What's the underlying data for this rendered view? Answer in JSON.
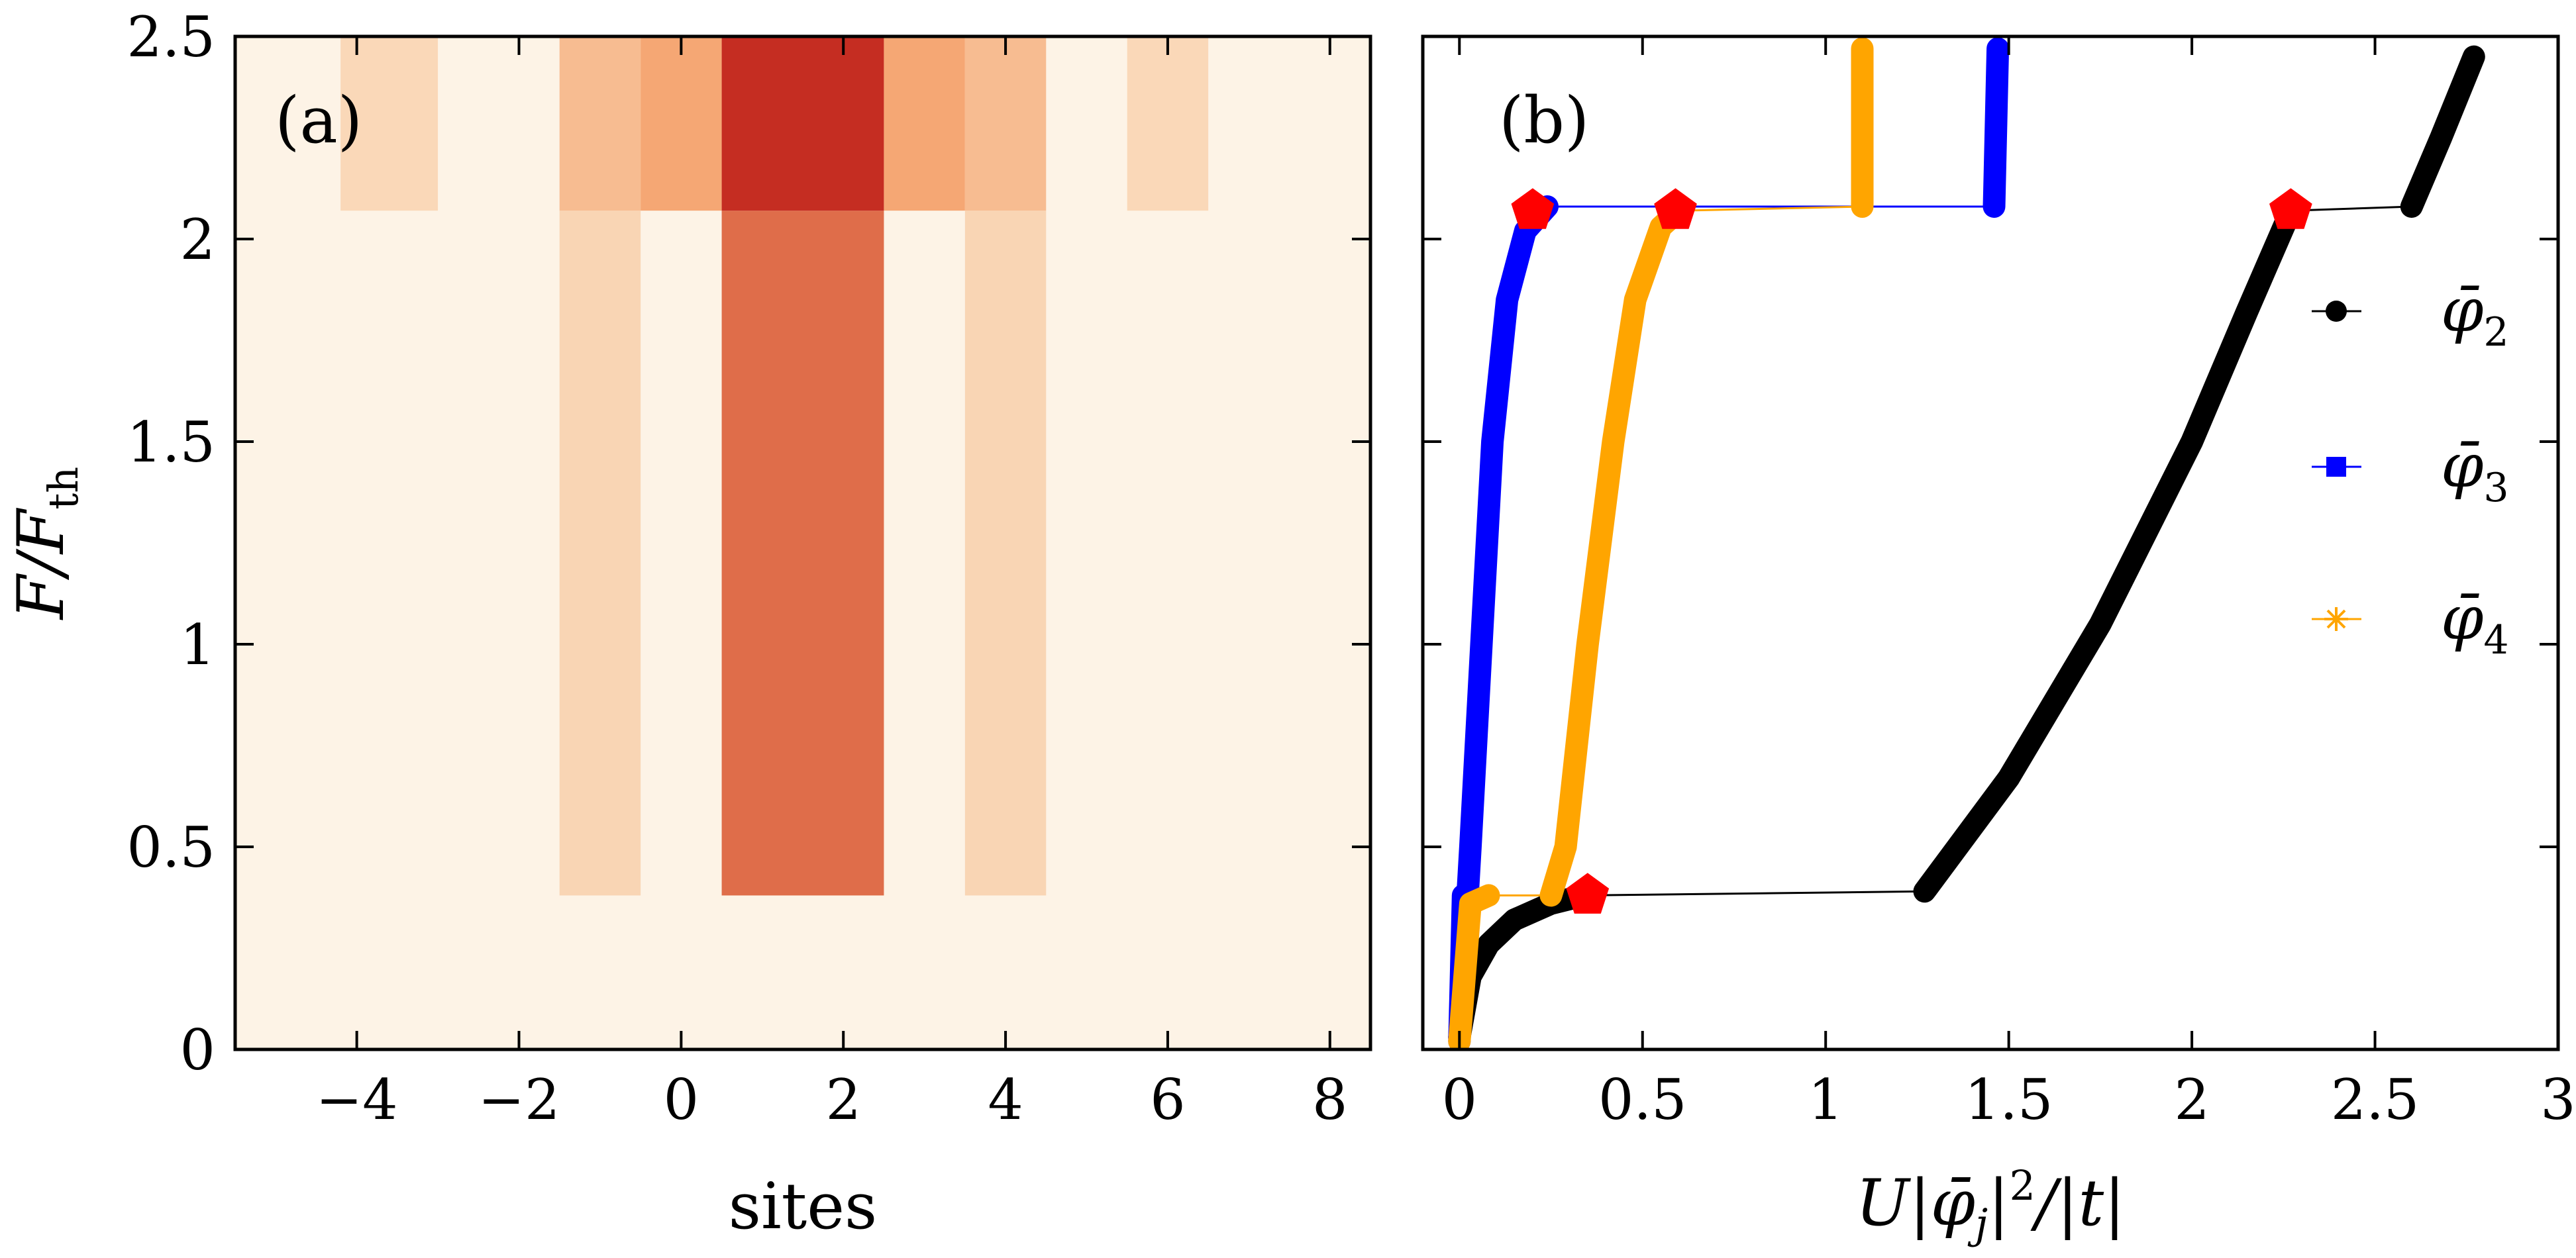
{
  "chart_data": [
    {
      "type": "heatmap",
      "panel_label": "(a)",
      "xlabel": "sites",
      "ylabel": "F/F_th",
      "xlim": [
        -5.5,
        8.5
      ],
      "ylim": [
        0,
        2.5
      ],
      "xticks": [
        "−4",
        "−2",
        "0",
        "2",
        "4",
        "6",
        "8"
      ],
      "xtick_values": [
        -4,
        -2,
        0,
        2,
        4,
        6,
        8
      ],
      "yticks": [
        "0",
        "0.5",
        "1",
        "1.5",
        "2",
        "2.5"
      ],
      "ytick_values": [
        0,
        0.5,
        1,
        1.5,
        2,
        2.5
      ],
      "colors": {
        "background": "#fdf3e6",
        "low": "#fbe6cc",
        "mid": "#f4a06a",
        "high": "#c0201a"
      },
      "bands": [
        {
          "x0": -4.2,
          "x1": -3.0,
          "segments": [
            {
              "y0": 2.07,
              "y1": 2.5,
              "level": 0.1
            }
          ]
        },
        {
          "x0": -1.5,
          "x1": -0.5,
          "segments": [
            {
              "y0": 0.38,
              "y1": 2.07,
              "level": 0.12
            },
            {
              "y0": 2.07,
              "y1": 2.5,
              "level": 0.3
            }
          ]
        },
        {
          "x0": -0.5,
          "x1": 0.5,
          "segments": [
            {
              "y0": 2.07,
              "y1": 2.5,
              "level": 0.45
            }
          ]
        },
        {
          "x0": 0.5,
          "x1": 2.5,
          "segments": [
            {
              "y0": 0.38,
              "y1": 2.07,
              "level": 0.7
            },
            {
              "y0": 2.07,
              "y1": 2.5,
              "level": 0.95
            }
          ]
        },
        {
          "x0": 2.5,
          "x1": 3.5,
          "segments": [
            {
              "y0": 2.07,
              "y1": 2.5,
              "level": 0.45
            }
          ]
        },
        {
          "x0": 3.5,
          "x1": 4.5,
          "segments": [
            {
              "y0": 0.38,
              "y1": 2.07,
              "level": 0.12
            },
            {
              "y0": 2.07,
              "y1": 2.5,
              "level": 0.3
            }
          ]
        },
        {
          "x0": 5.5,
          "x1": 6.5,
          "segments": [
            {
              "y0": 2.07,
              "y1": 2.5,
              "level": 0.1
            }
          ]
        }
      ]
    },
    {
      "type": "line",
      "panel_label": "(b)",
      "xlabel": "U|φ̄_j|²/|t|",
      "ylabel": "",
      "xlim": [
        -0.1,
        3.0
      ],
      "ylim": [
        0,
        2.5
      ],
      "xticks": [
        "0",
        "0.5",
        "1",
        "1.5",
        "2",
        "2.5",
        "3"
      ],
      "xtick_values": [
        0,
        0.5,
        1,
        1.5,
        2,
        2.5,
        3
      ],
      "yticks": [],
      "ytick_values": [
        0,
        0.5,
        1,
        1.5,
        2,
        2.5
      ],
      "legend_position": "right",
      "series": [
        {
          "name": "φ̄",
          "name_sub": "2",
          "color": "#000000",
          "marker": "circle",
          "thick_segments": [
            [
              [
                0.0,
                0.03
              ],
              [
                0.03,
                0.18
              ],
              [
                0.08,
                0.26
              ],
              [
                0.15,
                0.32
              ],
              [
                0.25,
                0.36
              ],
              [
                0.34,
                0.38
              ]
            ],
            [
              [
                1.27,
                0.39
              ],
              [
                1.5,
                0.67
              ],
              [
                1.75,
                1.05
              ],
              [
                2.0,
                1.5
              ],
              [
                2.15,
                1.82
              ],
              [
                2.27,
                2.07
              ]
            ],
            [
              [
                2.6,
                2.08
              ],
              [
                2.68,
                2.25
              ],
              [
                2.77,
                2.45
              ]
            ]
          ],
          "jumps": [
            [
              [
                0.34,
                0.38
              ],
              [
                1.27,
                0.39
              ]
            ],
            [
              [
                2.27,
                2.07
              ],
              [
                2.6,
                2.08
              ]
            ]
          ]
        },
        {
          "name": "φ̄",
          "name_sub": "3",
          "color": "#0000ff",
          "marker": "square",
          "thick_segments": [
            [
              [
                0.0,
                0.02
              ],
              [
                0.01,
                0.38
              ]
            ],
            [
              [
                0.0,
                0.03
              ],
              [
                0.03,
                0.5
              ],
              [
                0.06,
                1.0
              ],
              [
                0.09,
                1.5
              ],
              [
                0.13,
                1.85
              ],
              [
                0.18,
                2.02
              ],
              [
                0.24,
                2.08
              ]
            ],
            [
              [
                1.46,
                2.08
              ],
              [
                1.47,
                2.47
              ]
            ]
          ],
          "jumps": [
            [
              [
                0.24,
                2.08
              ],
              [
                1.46,
                2.08
              ]
            ]
          ]
        },
        {
          "name": "φ̄",
          "name_sub": "4",
          "color": "#ffa500",
          "marker": "star",
          "thick_segments": [
            [
              [
                0.0,
                0.02
              ],
              [
                0.03,
                0.36
              ],
              [
                0.08,
                0.38
              ]
            ],
            [
              [
                0.25,
                0.38
              ],
              [
                0.29,
                0.5
              ],
              [
                0.35,
                1.0
              ],
              [
                0.42,
                1.5
              ],
              [
                0.48,
                1.85
              ],
              [
                0.55,
                2.03
              ],
              [
                0.6,
                2.07
              ]
            ],
            [
              [
                1.1,
                2.08
              ],
              [
                1.1,
                2.47
              ]
            ]
          ],
          "jumps": [
            [
              [
                0.08,
                0.38
              ],
              [
                0.25,
                0.38
              ]
            ],
            [
              [
                0.6,
                2.07
              ],
              [
                1.1,
                2.08
              ]
            ]
          ]
        }
      ],
      "highlight_points": [
        [
          0.2,
          2.07
        ],
        [
          0.35,
          0.38
        ],
        [
          0.59,
          2.07
        ],
        [
          2.27,
          2.07
        ]
      ]
    }
  ]
}
